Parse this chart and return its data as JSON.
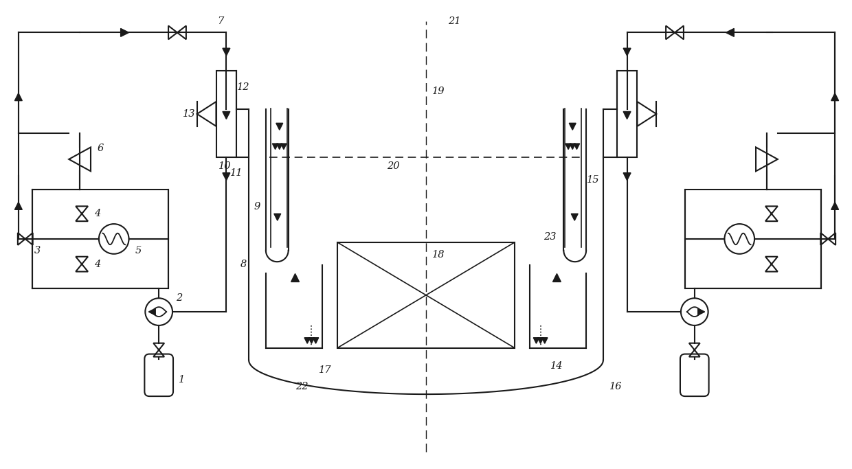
{
  "figsize": [
    12.4,
    6.83
  ],
  "dpi": 100,
  "bg_color": "#ffffff",
  "line_color": "#1a1a1a",
  "lw": 1.5
}
